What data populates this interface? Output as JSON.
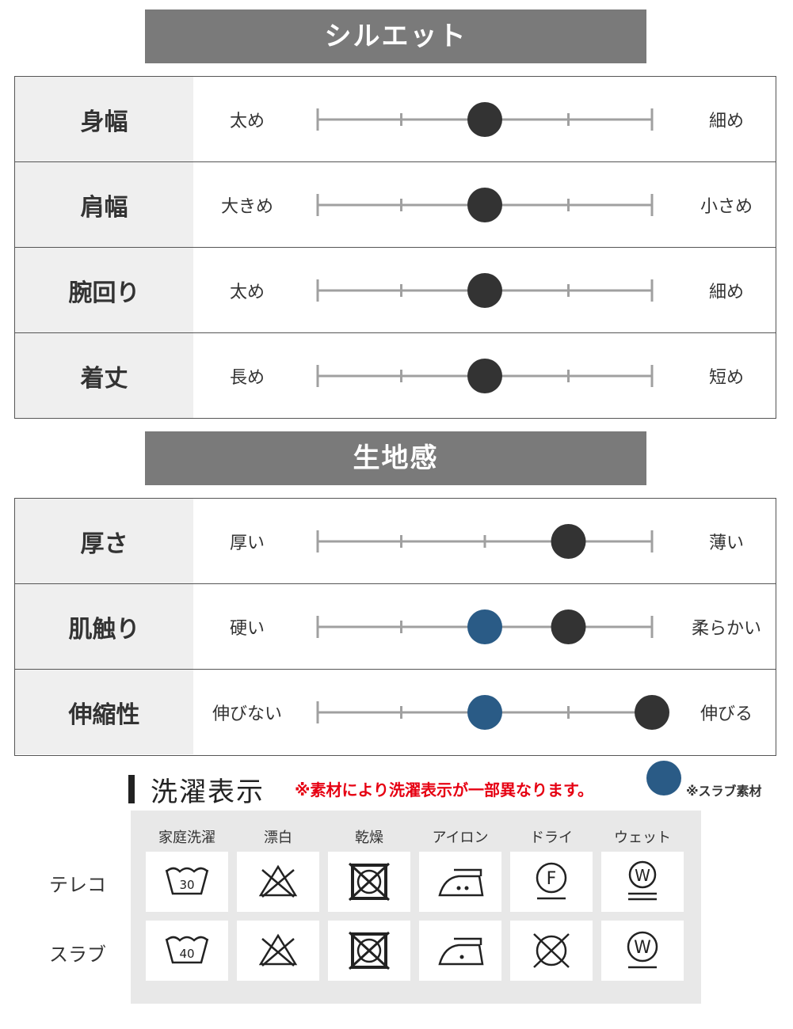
{
  "silhouette": {
    "title": "シルエット",
    "rows": [
      {
        "label": "身幅",
        "left": "太め",
        "right": "細め",
        "level": 3
      },
      {
        "label": "肩幅",
        "left": "大きめ",
        "right": "小さめ",
        "level": 3
      },
      {
        "label": "腕回り",
        "left": "太め",
        "right": "細め",
        "level": 3
      },
      {
        "label": "着丈",
        "left": "長め",
        "right": "短め",
        "level": 3
      }
    ]
  },
  "fabric": {
    "title": "生地感",
    "rows": [
      {
        "label": "厚さ",
        "left": "厚い",
        "right": "薄い",
        "level": 4
      },
      {
        "label": "肌触り",
        "left": "硬い",
        "right": "柔らかい",
        "level": 4,
        "slub_level": 3
      },
      {
        "label": "伸縮性",
        "left": "伸びない",
        "right": "伸びる",
        "level": 5,
        "slub_level": 3
      }
    ]
  },
  "colors": {
    "dark_dot": "#333333",
    "slub_dot": "#2a5b86",
    "banner": "#7a7a7a",
    "note": "#e60012"
  },
  "washing": {
    "title": "洗濯表示",
    "note": "※素材により洗濯表示が一部異なります。",
    "legend": "※スラブ素材",
    "columns": [
      "家庭洗濯",
      "漂白",
      "乾燥",
      "アイロン",
      "ドライ",
      "ウェット"
    ],
    "rows": [
      {
        "label": "テレコ",
        "wash_temp": "30",
        "dry": "F",
        "wet": "W",
        "icons": [
          "wash-tub-30-icon",
          "bleach-prohibited-icon",
          "tumble-dry-prohibited-icon",
          "iron-medium-icon",
          "dry-clean-f-icon",
          "wet-clean-gentle-icon"
        ]
      },
      {
        "label": "スラブ",
        "wash_temp": "40",
        "wet": "W",
        "icons": [
          "wash-tub-40-icon",
          "bleach-prohibited-icon",
          "tumble-dry-prohibited-icon",
          "iron-low-icon",
          "dry-clean-prohibited-icon",
          "wet-clean-icon"
        ]
      }
    ]
  }
}
